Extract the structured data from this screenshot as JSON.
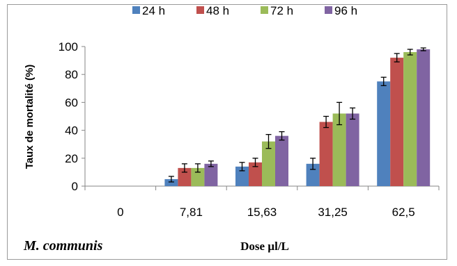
{
  "chart_data": {
    "type": "bar",
    "categories": [
      "0",
      "7,81",
      "15,63",
      "31,25",
      "62,5"
    ],
    "series": [
      {
        "name": "24 h",
        "color": "#4f81bd",
        "values": [
          0,
          5,
          14,
          16,
          75
        ],
        "errors": [
          0,
          2,
          3,
          4,
          3
        ]
      },
      {
        "name": "48 h",
        "color": "#c0504d",
        "values": [
          0,
          13,
          17,
          46,
          92
        ],
        "errors": [
          0,
          3,
          3,
          4,
          3
        ]
      },
      {
        "name": "72 h",
        "color": "#9bbb59",
        "values": [
          0,
          13,
          32,
          52,
          96
        ],
        "errors": [
          0,
          3,
          5,
          8,
          2
        ]
      },
      {
        "name": "96 h",
        "color": "#8064a2",
        "values": [
          0,
          16,
          36,
          52,
          98
        ],
        "errors": [
          0,
          2,
          3,
          4,
          1
        ]
      }
    ],
    "ylabel": "Taux de mortalité (%)",
    "xlabel": "Dose µl/L",
    "ylim": [
      0,
      100
    ],
    "yticks": [
      0,
      20,
      40,
      60,
      80,
      100
    ],
    "legend_position": "top",
    "grid": false
  },
  "annotation": "M. communis"
}
